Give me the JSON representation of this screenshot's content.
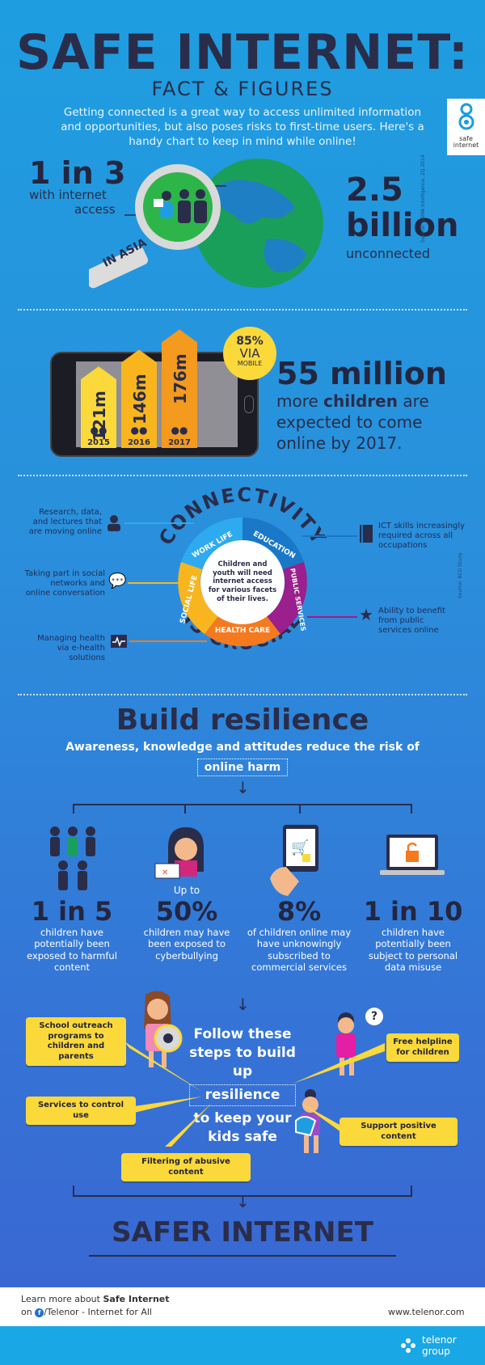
{
  "header": {
    "title": "SAFE INTERNET:",
    "subtitle": "FACT & FIGURES",
    "intro": "Getting connected is a great way to access unlimited information and opportunities, but also poses risks to first-time users. Here's a handy chart to keep in mind while online!",
    "logo_text_1": "safe",
    "logo_text_2": "internet"
  },
  "asia": {
    "stat": "1 in 3",
    "stat_label_1": "with internet",
    "stat_label_2": "access",
    "lens_label": "IN ASIA",
    "big": "2.5",
    "big2": "billion",
    "big_label": "unconnected",
    "source": "Source: GSMA Intelligence, 2Q 2014"
  },
  "children_growth": {
    "badge_pct": "85%",
    "badge_via": "VIA",
    "badge_mobile": "MOBILE",
    "bars": [
      {
        "label": "121m",
        "year": "2015",
        "value": 121
      },
      {
        "label": "146m",
        "year": "2016",
        "value": 146
      },
      {
        "label": "176m",
        "year": "2017",
        "value": 176
      }
    ],
    "headline": "55 million",
    "line1_pre": "more ",
    "line1_bold": "children",
    "line1_post": " are",
    "line2": "expected to come",
    "line3": "online by 2017."
  },
  "connectivity": {
    "title_top": "CONNECTIVITY",
    "title_bottom": "IS CRUCIAL",
    "center_text": "Children and youth will need internet access for various facets of their lives.",
    "segments": [
      "WORK LIFE",
      "EDUCATION",
      "PUBLIC SERVICES",
      "HEALTH CARE",
      "SOCIAL LIFE"
    ],
    "left_notes": [
      "Research, data, and lectures that are moving online",
      "Taking part in social networks and online conversation",
      "Managing health via e-health solutions"
    ],
    "right_notes": [
      "ICT skills increasingly required across all occupations",
      "Ability to benefit from public services online"
    ],
    "source": "Source: BCG Study"
  },
  "resilience": {
    "title": "Build resilience",
    "subtitle": "Awareness, knowledge and attitudes reduce the risk of",
    "highlight": "online harm",
    "stats": [
      {
        "pre": "",
        "big": "1 in 5",
        "text": "children have potentially been exposed to harmful content"
      },
      {
        "pre": "Up to",
        "big": "50%",
        "text": "children may have been exposed to cyberbullying"
      },
      {
        "pre": "",
        "big": "8%",
        "text": "of children online may have unknowingly subscribed to commercial services"
      },
      {
        "pre": "",
        "big": "1 in 10",
        "text": "children have potentially been subject to personal data misuse"
      }
    ]
  },
  "steps": {
    "line1": "Follow these",
    "line2": "steps to build up",
    "highlight": "resilience",
    "line3": "to keep your",
    "line4": "kids safe",
    "items": [
      "School outreach programs to children and parents",
      "Services to control use",
      "Filtering of abusive content",
      "Free helpline for children",
      "Support positive content"
    ],
    "question": "?"
  },
  "footer": {
    "final": "SAFER INTERNET",
    "learn_pre": "Learn more about ",
    "learn_bold": "Safe Internet",
    "on": "on",
    "fb": "/Telenor - Internet for All",
    "url": "www.telenor.com",
    "brand1": "telenor",
    "brand2": "group"
  },
  "colors": {
    "navy": "#2a2d4a",
    "yellow": "#fbd93a",
    "orange": "#f39a1f",
    "blue_light": "#1e9ee0",
    "purple": "#9b1f8c"
  }
}
